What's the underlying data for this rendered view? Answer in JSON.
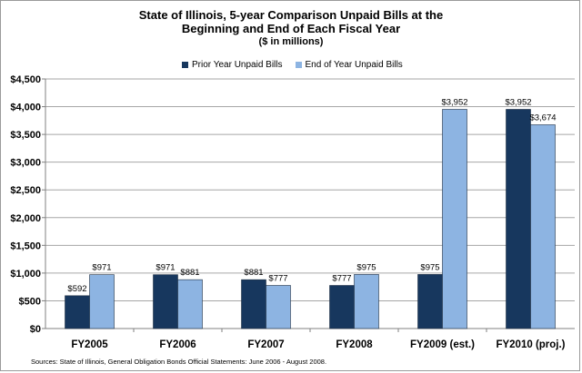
{
  "title_lines": [
    "State of Illinois, 5-year Comparison Unpaid Bills at the",
    "Beginning and End of Each Fiscal Year"
  ],
  "subtitle": "($ in millions)",
  "source_note": "Sources: State of Illinois, General Obligation Bonds Official Statements: June 2006 - August 2008.",
  "chart_data": {
    "type": "bar",
    "title": "State of Illinois, 5-year Comparison Unpaid Bills at the Beginning and End of Each Fiscal Year",
    "subtitle": "($ in millions)",
    "categories": [
      "FY2005",
      "FY2006",
      "FY2007",
      "FY2008",
      "FY2009 (est.)",
      "FY2010 (proj.)"
    ],
    "series": [
      {
        "name": "Prior Year Unpaid Bills",
        "color": "#17375e",
        "values": [
          592,
          971,
          881,
          777,
          975,
          3952
        ],
        "labels": [
          "$592",
          "$971",
          "$881",
          "$777",
          "$975",
          "$3,952"
        ]
      },
      {
        "name": "End of Year Unpaid Bills",
        "color": "#8db4e2",
        "values": [
          971,
          881,
          777,
          975,
          3952,
          3674
        ],
        "labels": [
          "$971",
          "$881",
          "$777",
          "$975",
          "$3,952",
          "$3,674"
        ]
      }
    ],
    "ylim": [
      0,
      4500
    ],
    "yticks": [
      0,
      500,
      1000,
      1500,
      2000,
      2500,
      3000,
      3500,
      4000,
      4500
    ],
    "ytick_labels": [
      "$0",
      "$500",
      "$1,000",
      "$1,500",
      "$2,000",
      "$2,500",
      "$3,000",
      "$3,500",
      "$4,000",
      "$4,500"
    ],
    "grid": true,
    "legend_position": "top"
  }
}
